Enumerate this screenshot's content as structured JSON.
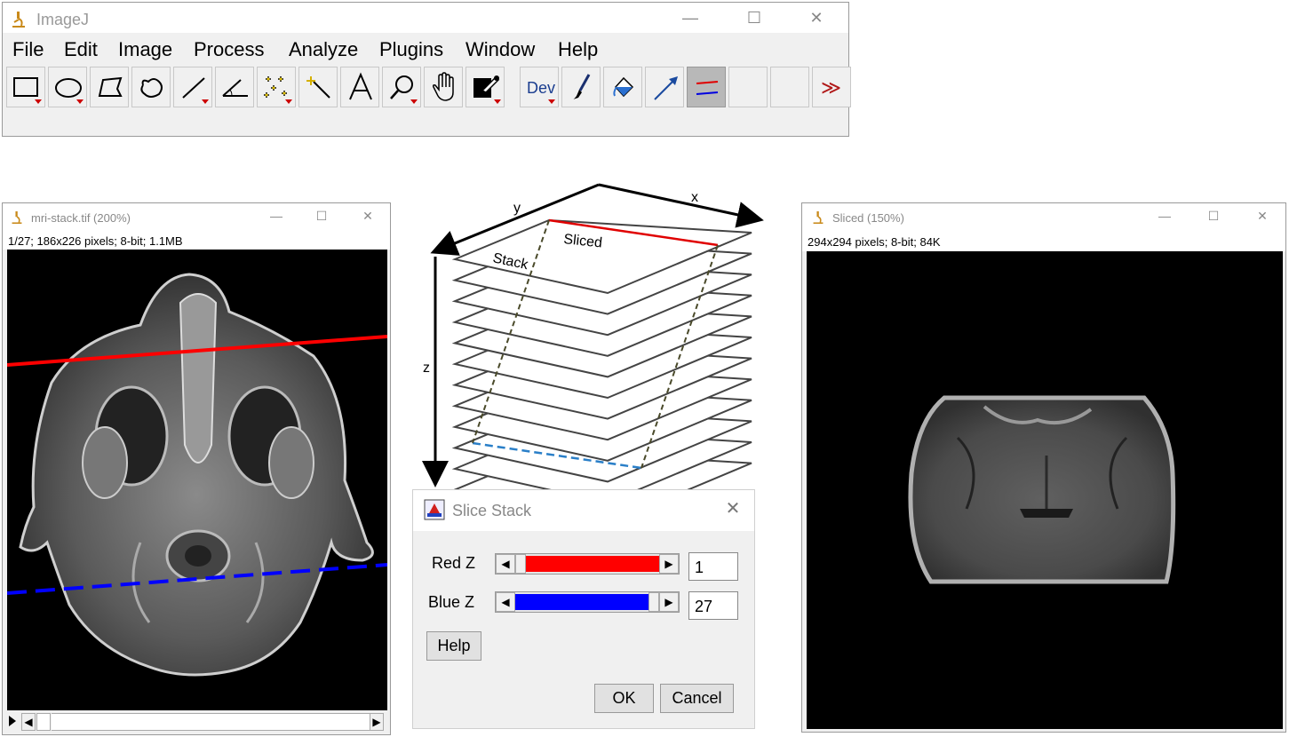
{
  "main_window": {
    "title": "ImageJ",
    "menu": [
      "File",
      "Edit",
      "Image",
      "Process",
      "Analyze",
      "Plugins",
      "Window",
      "Help"
    ],
    "tools": [
      "rectangle-icon",
      "oval-icon",
      "polygon-icon",
      "freehand-icon",
      "line-icon",
      "angle-icon",
      "multipoint-icon",
      "wand-icon",
      "text-icon",
      "magnifier-icon",
      "hand-icon",
      "color-picker-icon",
      "dev-icon",
      "brush-icon",
      "flood-fill-icon",
      "arrow-icon",
      "slice-lines-icon",
      "empty-slot-icon",
      "empty-slot-icon",
      "more-tools-icon"
    ],
    "dev_label": "Dev",
    "more_label": "≫"
  },
  "stack_window": {
    "title": "mri-stack.tif (200%)",
    "info": "1/27; 186x226 pixels; 8-bit; 1.1MB"
  },
  "sliced_window": {
    "title": "Sliced (150%)",
    "info": "294x294 pixels; 8-bit; 84K"
  },
  "diagram": {
    "x_label": "x",
    "y_label": "y",
    "z_label": "z",
    "stack_label": "Stack",
    "sliced_label": "Sliced"
  },
  "dialog": {
    "title": "Slice Stack",
    "red_label": "Red Z",
    "red_value": "1",
    "red_fraction": 0.0,
    "blue_label": "Blue Z",
    "blue_value": "27",
    "blue_fraction": 1.0,
    "help_label": "Help",
    "ok_label": "OK",
    "cancel_label": "Cancel"
  },
  "colors": {
    "red": "#ff0000",
    "blue": "#0000ff",
    "icon_gold": "#c98a1a"
  }
}
